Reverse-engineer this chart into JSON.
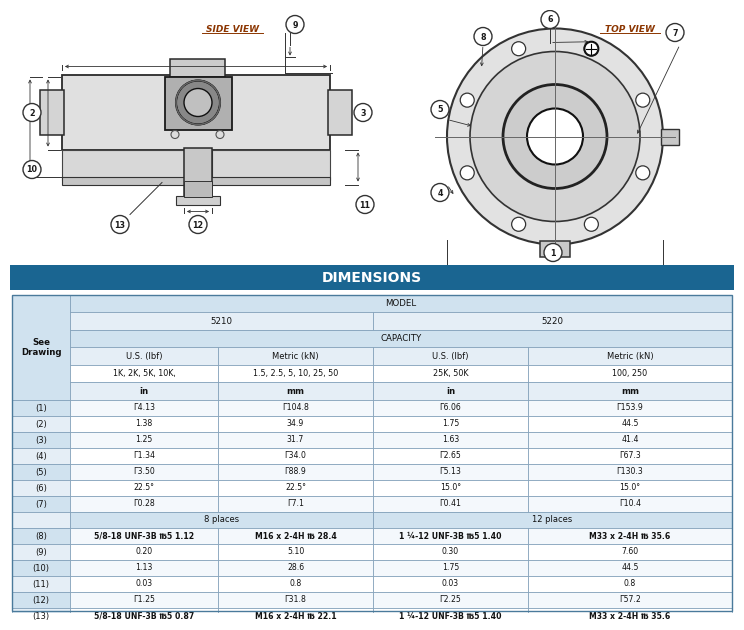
{
  "title": "DIMENSIONS",
  "title_bg": "#1a6591",
  "title_fg": "#ffffff",
  "hdr_dark": "#b8cfe0",
  "hdr_mid": "#d0e2ef",
  "hdr_light": "#e5eef6",
  "row_a": "#f4f8fc",
  "row_b": "#ffffff",
  "border": "#7a9ab5",
  "text": "#111111",
  "diagram_bg": "#ffffff",
  "sv_label": "SIDE VIEW",
  "tv_label": "TOP VIEW",
  "label_color": "#8B3500",
  "rows": [
    [
      "(1)",
      "Г4.13",
      "Г104.8",
      "Г6.06",
      "Г153.9"
    ],
    [
      "(2)",
      "1.38",
      "34.9",
      "1.75",
      "44.5"
    ],
    [
      "(3)",
      "1.25",
      "31.7",
      "1.63",
      "41.4"
    ],
    [
      "(4)",
      "Г1.34",
      "Г34.0",
      "Г2.65",
      "Г67.3"
    ],
    [
      "(5)",
      "Г3.50",
      "Г88.9",
      "Г5.13",
      "Г130.3"
    ],
    [
      "(6)",
      "22.5°",
      "22.5°",
      "15.0°",
      "15.0°"
    ],
    [
      "(7)",
      "Г0.28",
      "Г7.1",
      "Г0.41",
      "Г10.4"
    ],
    [
      "",
      "8 places",
      "",
      "12 places",
      ""
    ],
    [
      "(8)",
      "5/8-18 UNF-3B ℔5 1.12",
      "M16 x 2-4H ℔ 28.4",
      "1 ¼-12 UNF-3B ℔5 1.40",
      "M33 x 2-4H ℔ 35.6"
    ],
    [
      "(9)",
      "0.20",
      "5.10",
      "0.30",
      "7.60"
    ],
    [
      "(10)",
      "1.13",
      "28.6",
      "1.75",
      "44.5"
    ],
    [
      "(11)",
      "0.03",
      "0.8",
      "0.03",
      "0.8"
    ],
    [
      "(12)",
      "Г1.25",
      "Г31.8",
      "Г2.25",
      "Г57.2"
    ],
    [
      "(13)",
      "5/8-18 UNF-3B ℔5 0.87",
      "M16 x 2-4H ℔ 22.1",
      "1 ¼-12 UNF-3B ℔5 1.40",
      "M33 x 2-4H ℔ 35.6"
    ]
  ]
}
